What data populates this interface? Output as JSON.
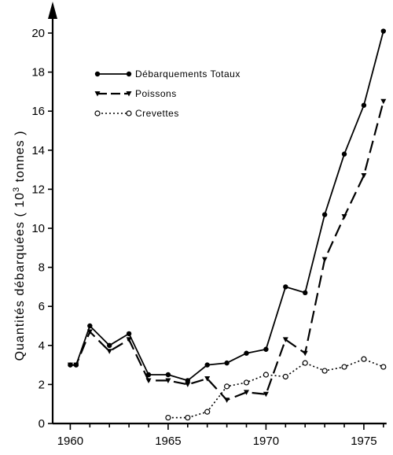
{
  "chart_data": {
    "type": "line",
    "title": "",
    "xlabel": "",
    "ylabel": "Quantités débarquées ( 10",
    "ylabel_sup": "3",
    "ylabel_unit": " tonnes )",
    "xlim": [
      1960,
      1976
    ],
    "ylim": [
      0,
      21
    ],
    "x_ticks": [
      1960,
      1965,
      1970,
      1975
    ],
    "y_ticks": [
      0,
      2,
      4,
      6,
      8,
      10,
      12,
      14,
      16,
      18,
      20
    ],
    "grid": false,
    "legend_position": "top-left",
    "series": [
      {
        "name": "Débarquements Totaux",
        "style": "solid",
        "marker": "filled-circle",
        "x": [
          1960,
          1960.3,
          1961,
          1962,
          1963,
          1964,
          1965,
          1966,
          1967,
          1968,
          1969,
          1970,
          1971,
          1972,
          1973,
          1974,
          1975,
          1976
        ],
        "y": [
          3.0,
          3.0,
          5.0,
          4.0,
          4.6,
          2.5,
          2.5,
          2.2,
          3.0,
          3.1,
          3.6,
          3.8,
          7.0,
          6.7,
          10.7,
          13.8,
          16.3,
          20.1
        ]
      },
      {
        "name": "Poissons",
        "style": "dashed",
        "marker": "triangle-down",
        "x": [
          1960,
          1960.3,
          1961,
          1962,
          1963,
          1964,
          1965,
          1966,
          1967,
          1968,
          1969,
          1970,
          1971,
          1972,
          1973,
          1974,
          1975,
          1976
        ],
        "y": [
          3.0,
          3.0,
          4.7,
          3.7,
          4.3,
          2.2,
          2.2,
          2.0,
          2.3,
          1.2,
          1.6,
          1.5,
          4.3,
          3.6,
          8.4,
          10.6,
          12.7,
          16.5
        ]
      },
      {
        "name": "Crevettes",
        "style": "dotted",
        "marker": "open-circle",
        "x": [
          1965,
          1966,
          1967,
          1968,
          1969,
          1970,
          1971,
          1972,
          1973,
          1974,
          1975,
          1976
        ],
        "y": [
          0.3,
          0.3,
          0.6,
          1.9,
          2.1,
          2.5,
          2.4,
          3.1,
          2.7,
          2.9,
          3.3,
          2.9
        ]
      }
    ]
  }
}
